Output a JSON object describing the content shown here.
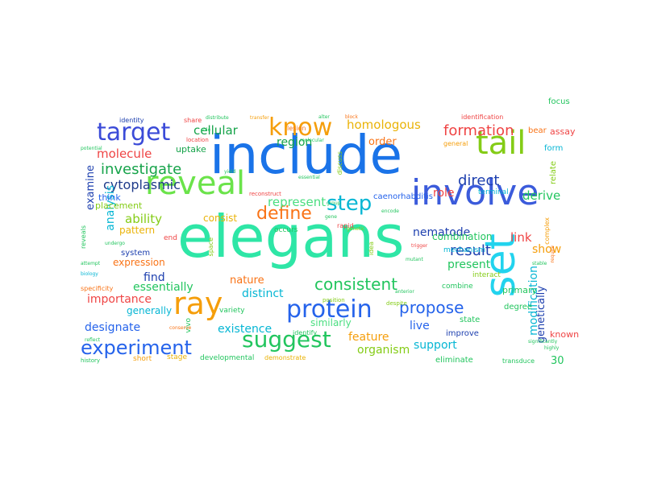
{
  "words": [
    {
      "text": "include",
      "color": "#1a73e8"
    },
    {
      "text": "elegans",
      "color": "#2ee6a6"
    },
    {
      "text": "set",
      "color": "#22d3ee"
    },
    {
      "text": "involve",
      "color": "#3b5bdb"
    },
    {
      "text": "reveal",
      "color": "#6be34a"
    },
    {
      "text": "ray",
      "color": "#f59e0b"
    },
    {
      "text": "tail",
      "color": "#84cc16"
    },
    {
      "text": "protein",
      "color": "#2563eb"
    },
    {
      "text": "target",
      "color": "#3b4bd8"
    },
    {
      "text": "know",
      "color": "#f59e0b"
    },
    {
      "text": "suggest",
      "color": "#22c55e"
    },
    {
      "text": "experiment",
      "color": "#2563eb"
    },
    {
      "text": "step",
      "color": "#06b6d4"
    },
    {
      "text": "define",
      "color": "#f97316"
    },
    {
      "text": "formation",
      "color": "#ef4444"
    },
    {
      "text": "investigate",
      "color": "#16a34a"
    },
    {
      "text": "propose",
      "color": "#2563eb"
    },
    {
      "text": "cytoplasmic",
      "color": "#1e3a8a"
    },
    {
      "text": "consistent",
      "color": "#22c55e"
    },
    {
      "text": "homologous",
      "color": "#eab308"
    },
    {
      "text": "cellular",
      "color": "#16a34a"
    },
    {
      "text": "molecule",
      "color": "#ef4444"
    },
    {
      "text": "result",
      "color": "#1e40af"
    },
    {
      "text": "direct",
      "color": "#1e40af"
    },
    {
      "text": "represent",
      "color": "#4ade80"
    },
    {
      "text": "derive",
      "color": "#22c55e"
    },
    {
      "text": "role",
      "color": "#ef4444"
    },
    {
      "text": "region",
      "color": "#16a34a"
    },
    {
      "text": "ability",
      "color": "#84cc16"
    },
    {
      "text": "analysis",
      "color": "#06b6d4"
    },
    {
      "text": "examine",
      "color": "#1e40af"
    },
    {
      "text": "nematode",
      "color": "#1e40af"
    },
    {
      "text": "link",
      "color": "#ef4444"
    },
    {
      "text": "show",
      "color": "#f59e0b"
    },
    {
      "text": "present",
      "color": "#22c55e"
    },
    {
      "text": "modification",
      "color": "#06b6d4"
    },
    {
      "text": "genetically",
      "color": "#1e40af"
    },
    {
      "text": "essentially",
      "color": "#22c55e"
    },
    {
      "text": "distinct",
      "color": "#06b6d4"
    },
    {
      "text": "importance",
      "color": "#ef4444"
    },
    {
      "text": "designate",
      "color": "#2563eb"
    },
    {
      "text": "existence",
      "color": "#06b6d4"
    },
    {
      "text": "feature",
      "color": "#f59e0b"
    },
    {
      "text": "organism",
      "color": "#84cc16"
    },
    {
      "text": "support",
      "color": "#06b6d4"
    },
    {
      "text": "order",
      "color": "#f97316"
    },
    {
      "text": "live",
      "color": "#2563eb"
    },
    {
      "text": "find",
      "color": "#1e40af"
    },
    {
      "text": "nature",
      "color": "#f97316"
    },
    {
      "text": "combination",
      "color": "#22c55e"
    },
    {
      "text": "expression",
      "color": "#f97316"
    },
    {
      "text": "similarly",
      "color": "#4ade80"
    },
    {
      "text": "generally",
      "color": "#06b6d4"
    },
    {
      "text": "pattern",
      "color": "#eab308"
    },
    {
      "text": "consist",
      "color": "#eab308"
    },
    {
      "text": "caenorhabditis",
      "color": "#2563eb"
    },
    {
      "text": "think",
      "color": "#2563eb"
    },
    {
      "text": "placement",
      "color": "#84cc16"
    },
    {
      "text": "system",
      "color": "#1e40af"
    },
    {
      "text": "uptake",
      "color": "#16a34a"
    },
    {
      "text": "30",
      "color": "#22c55e"
    },
    {
      "text": "eliminate",
      "color": "#22c55e"
    },
    {
      "text": "improve",
      "color": "#1e40af"
    },
    {
      "text": "state",
      "color": "#22c55e"
    },
    {
      "text": "degree",
      "color": "#22c55e"
    },
    {
      "text": "primary",
      "color": "#22c55e"
    },
    {
      "text": "known",
      "color": "#ef4444"
    },
    {
      "text": "assay",
      "color": "#ef4444"
    },
    {
      "text": "bear",
      "color": "#f97316"
    },
    {
      "text": "focus",
      "color": "#22c55e"
    },
    {
      "text": "form",
      "color": "#06b6d4"
    },
    {
      "text": "relate",
      "color": "#84cc16"
    },
    {
      "text": "terminal",
      "color": "#06b6d4"
    },
    {
      "text": "identity",
      "color": "#1e40af"
    },
    {
      "text": "share",
      "color": "#ef4444"
    },
    {
      "text": "identification",
      "color": "#ef4444"
    },
    {
      "text": "end",
      "color": "#ef4444"
    },
    {
      "text": "developmental",
      "color": "#22c55e"
    },
    {
      "text": "demonstrate",
      "color": "#eab308"
    },
    {
      "text": "mechanism",
      "color": "#06b6d4"
    },
    {
      "text": "combine",
      "color": "#22c55e"
    },
    {
      "text": "interact",
      "color": "#84cc16"
    },
    {
      "text": "short",
      "color": "#f59e0b"
    },
    {
      "text": "stage",
      "color": "#eab308"
    },
    {
      "text": "variety",
      "color": "#22c55e"
    },
    {
      "text": "general",
      "color": "#f59e0b"
    },
    {
      "text": "location",
      "color": "#ef4444"
    },
    {
      "text": "lesion",
      "color": "#f97316"
    },
    {
      "text": "occurs",
      "color": "#22c55e"
    },
    {
      "text": "reconstruct",
      "color": "#ef4444"
    },
    {
      "text": "complex",
      "color": "#f59e0b"
    },
    {
      "text": "specificity",
      "color": "#f97316"
    },
    {
      "text": "reveals",
      "color": "#22c55e"
    },
    {
      "text": "vivo",
      "color": "#22c55e"
    },
    {
      "text": "history",
      "color": "#22c55e"
    },
    {
      "text": "position",
      "color": "#84cc16"
    },
    {
      "text": "idea",
      "color": "#84cc16"
    },
    {
      "text": "rapid",
      "color": "#ef4444"
    },
    {
      "text": "identify",
      "color": "#22c55e"
    },
    {
      "text": "space",
      "color": "#84cc16"
    },
    {
      "text": "despite",
      "color": "#84cc16"
    },
    {
      "text": "transduce",
      "color": "#22c55e"
    },
    {
      "text": "significantly",
      "color": "#22c55e"
    },
    {
      "text": "highly",
      "color": "#22c55e"
    },
    {
      "text": "require",
      "color": "#f97316"
    },
    {
      "text": "discuss",
      "color": "#84cc16"
    },
    {
      "text": "alter",
      "color": "#22c55e"
    },
    {
      "text": "undergo",
      "color": "#22c55e"
    },
    {
      "text": "biology",
      "color": "#06b6d4"
    },
    {
      "text": "attempt",
      "color": "#22c55e"
    },
    {
      "text": "genetic",
      "color": "#84cc16"
    },
    {
      "text": "group",
      "color": "#22c55e"
    },
    {
      "text": "block",
      "color": "#f97316"
    },
    {
      "text": "conserve",
      "color": "#f97316"
    },
    {
      "text": "essential",
      "color": "#22c55e"
    },
    {
      "text": "molecular",
      "color": "#22c55e"
    },
    {
      "text": "trigger",
      "color": "#ef4444"
    },
    {
      "text": "stable",
      "color": "#22c55e"
    },
    {
      "text": "reflect",
      "color": "#22c55e"
    },
    {
      "text": "potential",
      "color": "#22c55e"
    },
    {
      "text": "yield",
      "color": "#22c55e"
    },
    {
      "text": "sole",
      "color": "#22c55e"
    },
    {
      "text": "distribute",
      "color": "#22c55e"
    },
    {
      "text": "transfer",
      "color": "#f59e0b"
    },
    {
      "text": "encode",
      "color": "#22c55e"
    },
    {
      "text": "mutant",
      "color": "#22c55e"
    },
    {
      "text": "anterior",
      "color": "#22c55e"
    },
    {
      "text": "gene",
      "color": "#22c55e"
    }
  ]
}
